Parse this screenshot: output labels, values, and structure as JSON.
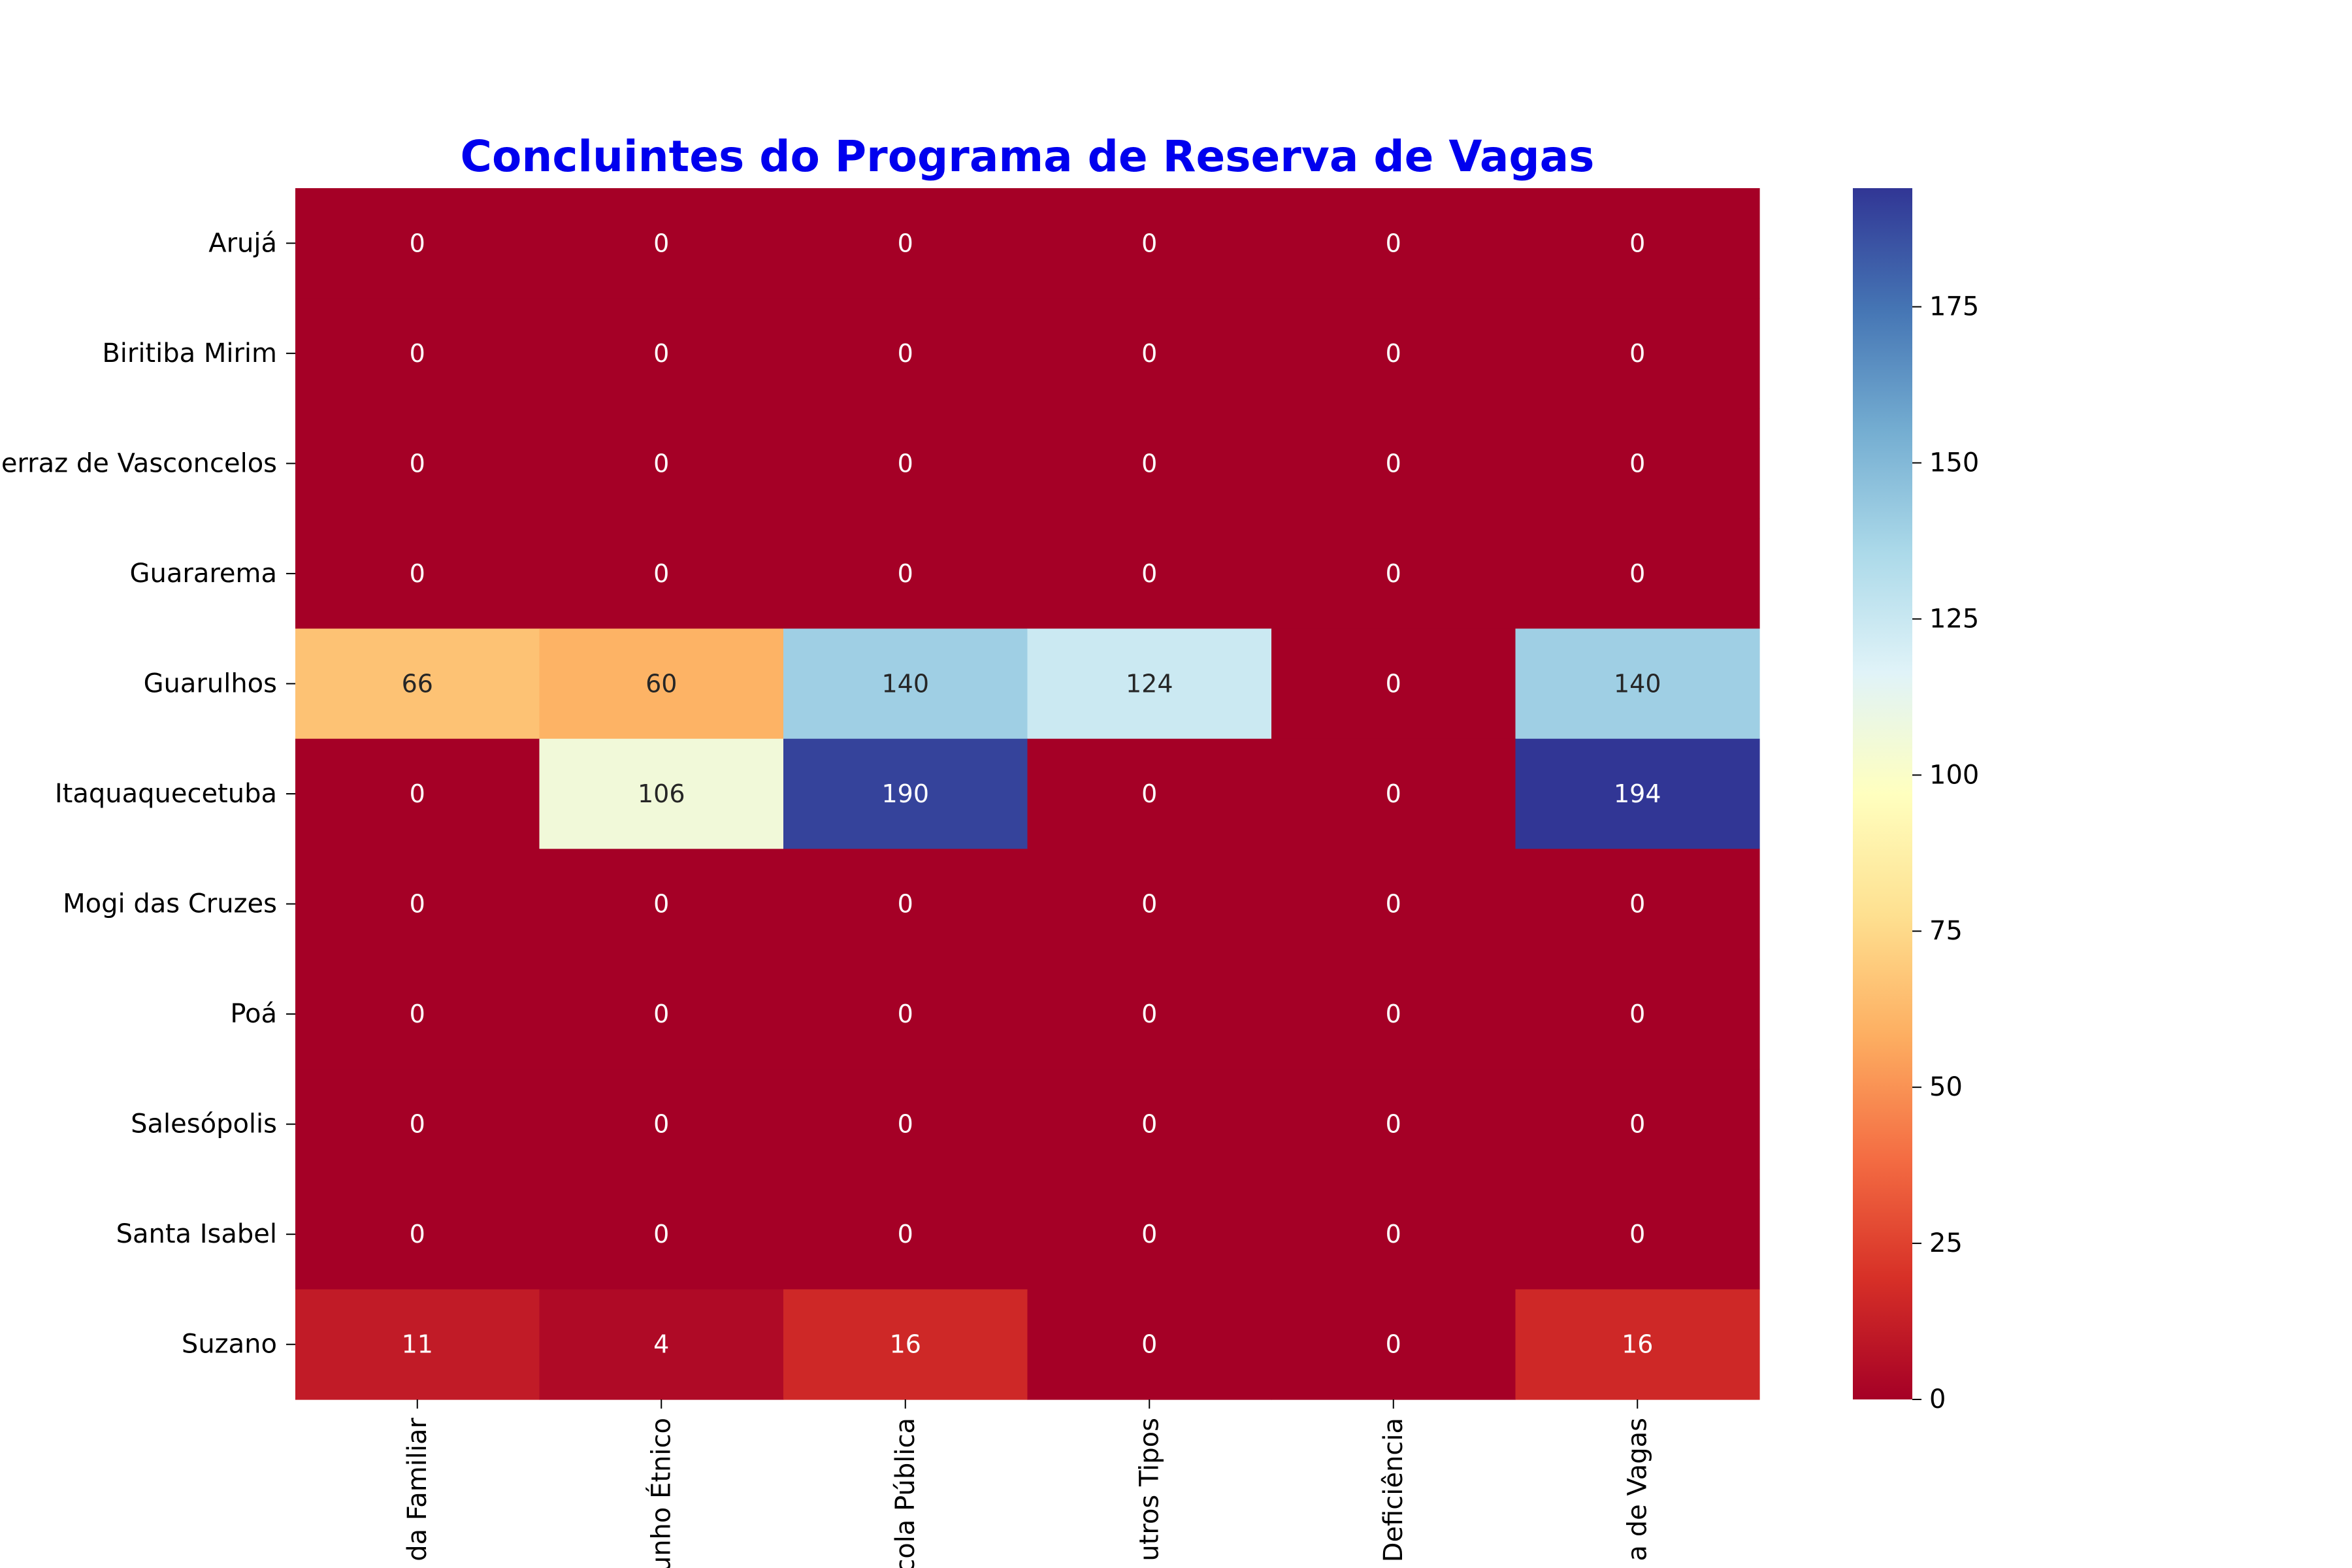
{
  "chart_data": {
    "type": "heatmap",
    "title": "Concluintes do Programa de Reserva de Vagas",
    "title_color": "#0000ee",
    "rows": [
      "Arujá",
      "Biritiba Mirim",
      "erraz de Vasconcelos",
      "Guararema",
      "Guarulhos",
      "Itaquaquecetuba",
      "Mogi das Cruzes",
      "Poá",
      "Salesópolis",
      "Santa Isabel",
      "Suzano"
    ],
    "columns": [
      "da Familiar",
      "unho Étnico",
      "cola Pública",
      "utros Tipos",
      "Deficiência",
      "a de Vagas"
    ],
    "values": [
      [
        0,
        0,
        0,
        0,
        0,
        0
      ],
      [
        0,
        0,
        0,
        0,
        0,
        0
      ],
      [
        0,
        0,
        0,
        0,
        0,
        0
      ],
      [
        0,
        0,
        0,
        0,
        0,
        0
      ],
      [
        66,
        60,
        140,
        124,
        0,
        140
      ],
      [
        0,
        106,
        190,
        0,
        0,
        194
      ],
      [
        0,
        0,
        0,
        0,
        0,
        0
      ],
      [
        0,
        0,
        0,
        0,
        0,
        0
      ],
      [
        0,
        0,
        0,
        0,
        0,
        0
      ],
      [
        0,
        0,
        0,
        0,
        0,
        0
      ],
      [
        11,
        4,
        16,
        0,
        0,
        16
      ]
    ],
    "colormap": "RdYlBu",
    "colorbar": {
      "range": [
        0,
        194
      ],
      "ticks": [
        "0",
        "25",
        "50",
        "75",
        "100",
        "125",
        "150",
        "175"
      ]
    },
    "annotate": true
  }
}
